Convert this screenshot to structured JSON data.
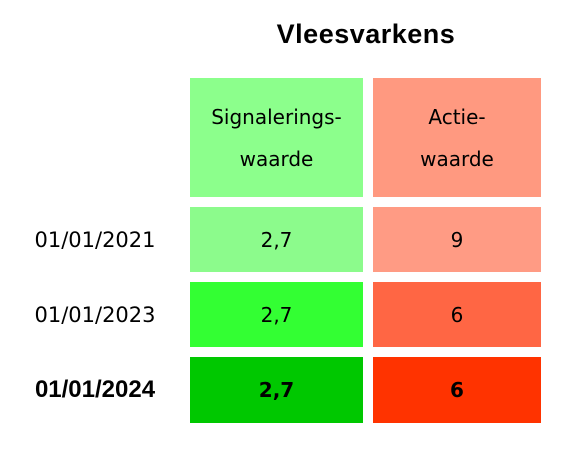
{
  "title": "Vleesvarkens",
  "table": {
    "header": [
      [
        "Signalerings-",
        "waarde"
      ],
      [
        "Actie-",
        "waarde"
      ]
    ],
    "rows": [
      [
        "01/01/2021",
        "2,7",
        "9"
      ],
      [
        "01/01/2023",
        "2,7",
        "6"
      ],
      [
        "01/01/2024",
        "2,7",
        "6"
      ]
    ]
  }
}
